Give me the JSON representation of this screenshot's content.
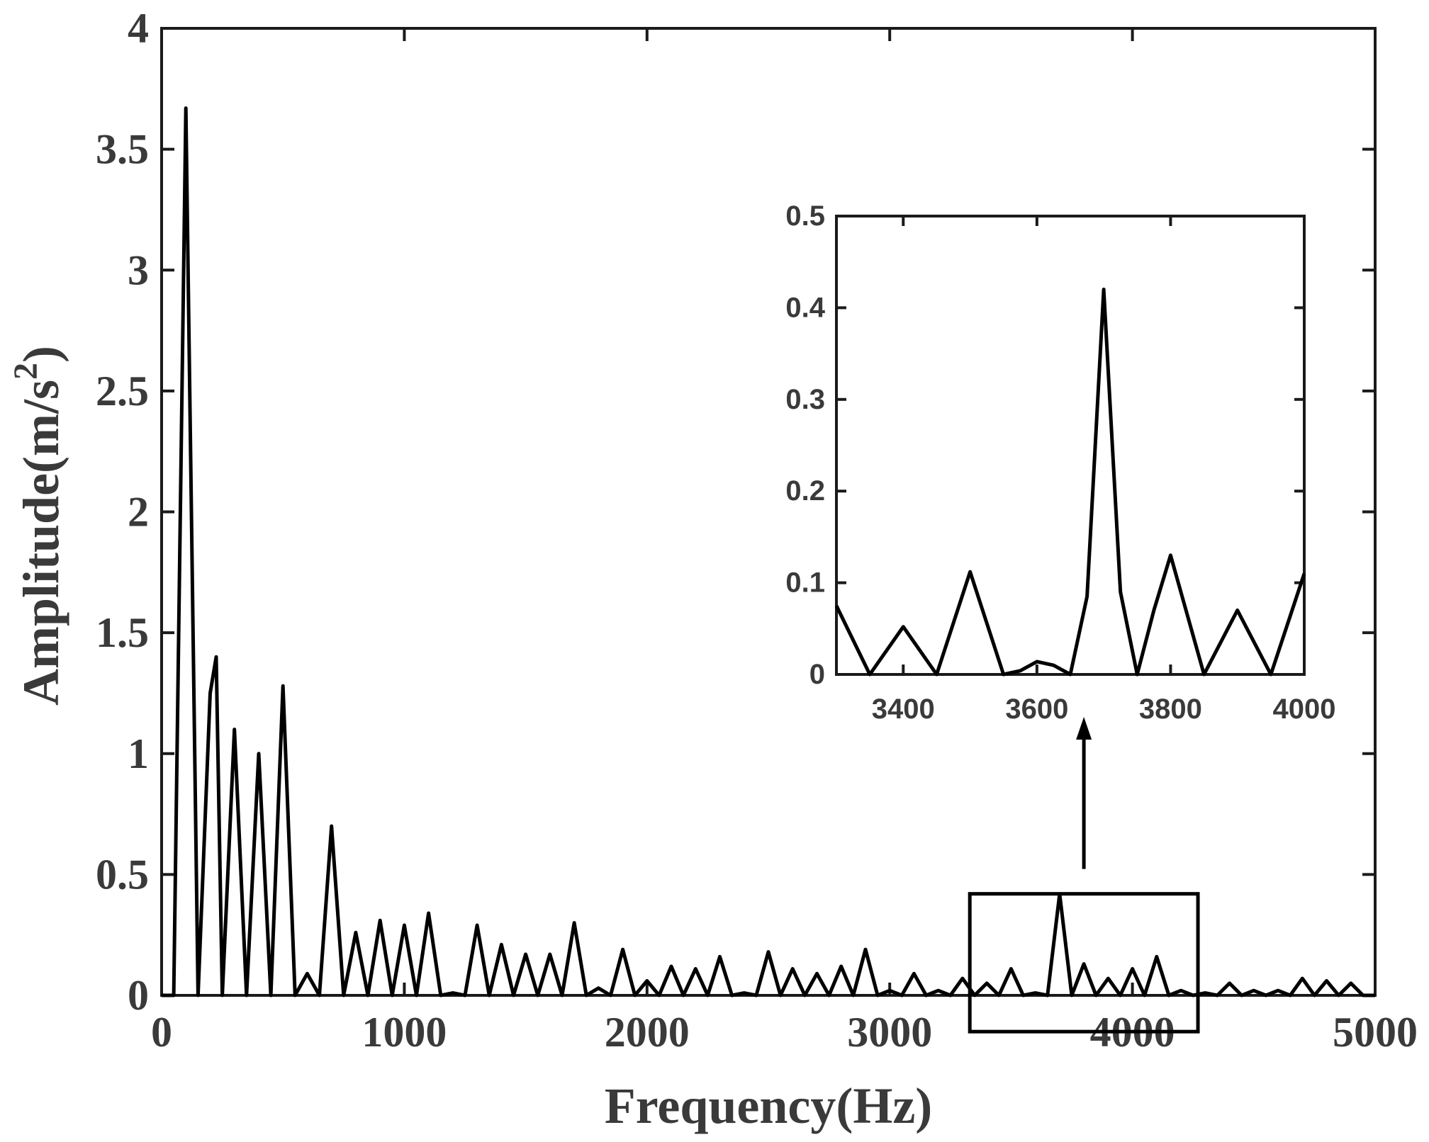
{
  "chart_data": [
    {
      "id": "main",
      "type": "line",
      "title": "",
      "xlabel": "Frequency(Hz)",
      "ylabel_base": "Amplitude(m/s",
      "ylabel_sup": "2",
      "ylabel_end": ")",
      "xlim": [
        0,
        5000
      ],
      "ylim": [
        0,
        4
      ],
      "xticks": [
        0,
        1000,
        2000,
        3000,
        4000,
        5000
      ],
      "xtick_labels": [
        "0",
        "1000",
        "2000",
        "3000",
        "4000",
        "5000"
      ],
      "yticks": [
        0,
        0.5,
        1,
        1.5,
        2,
        2.5,
        3,
        3.5,
        4
      ],
      "ytick_labels": [
        "0",
        "0.5",
        "1",
        "1.5",
        "2",
        "2.5",
        "3",
        "3.5",
        "4"
      ],
      "grid": false,
      "series": [
        {
          "color": "#000000",
          "x": [
            0,
            50,
            100,
            150,
            200,
            225,
            250,
            300,
            350,
            400,
            450,
            500,
            550,
            600,
            650,
            700,
            750,
            800,
            850,
            900,
            950,
            1000,
            1050,
            1100,
            1150,
            1200,
            1250,
            1300,
            1350,
            1400,
            1450,
            1500,
            1550,
            1600,
            1650,
            1700,
            1750,
            1800,
            1850,
            1900,
            1950,
            2000,
            2050,
            2100,
            2150,
            2200,
            2250,
            2300,
            2350,
            2400,
            2450,
            2500,
            2550,
            2600,
            2650,
            2700,
            2750,
            2800,
            2850,
            2900,
            2950,
            3000,
            3050,
            3100,
            3150,
            3200,
            3250,
            3300,
            3350,
            3400,
            3450,
            3500,
            3550,
            3600,
            3650,
            3700,
            3750,
            3800,
            3850,
            3900,
            3950,
            4000,
            4050,
            4100,
            4150,
            4200,
            4250,
            4300,
            4350,
            4400,
            4450,
            4500,
            4550,
            4600,
            4650,
            4700,
            4750,
            4800,
            4850,
            4900,
            4950,
            5000
          ],
          "y": [
            0,
            0,
            3.67,
            0,
            1.25,
            1.4,
            0,
            1.1,
            0,
            1.0,
            0,
            1.28,
            0,
            0.09,
            0,
            0.7,
            0,
            0.26,
            0,
            0.31,
            0,
            0.29,
            0,
            0.34,
            0,
            0.01,
            0,
            0.29,
            0,
            0.21,
            0,
            0.17,
            0,
            0.17,
            0,
            0.3,
            0,
            0.03,
            0,
            0.19,
            0,
            0.06,
            0,
            0.12,
            0,
            0.11,
            0,
            0.16,
            0,
            0.01,
            0,
            0.18,
            0,
            0.11,
            0,
            0.09,
            0,
            0.12,
            0,
            0.19,
            0,
            0.02,
            0,
            0.09,
            0,
            0.02,
            0,
            0.07,
            0,
            0.05,
            0,
            0.11,
            0,
            0.01,
            0,
            0.42,
            0,
            0.13,
            0,
            0.07,
            0,
            0.11,
            0,
            0.16,
            0,
            0.02,
            0,
            0.01,
            0,
            0.05,
            0,
            0.02,
            0,
            0.02,
            0,
            0.07,
            0,
            0.06,
            0,
            0.05,
            0,
            0
          ]
        }
      ],
      "zoom_region": {
        "x": [
          3330,
          4270
        ],
        "y": [
          -0.15,
          0.42
        ]
      }
    },
    {
      "id": "inset",
      "type": "line",
      "title": "",
      "xlabel": "",
      "ylabel": "",
      "xlim": [
        3300,
        4000
      ],
      "ylim": [
        0,
        0.5
      ],
      "xticks": [
        3400,
        3600,
        3800,
        4000
      ],
      "xtick_labels": [
        "3400",
        "3600",
        "3800",
        "4000"
      ],
      "yticks": [
        0,
        0.1,
        0.2,
        0.3,
        0.4,
        0.5
      ],
      "ytick_labels": [
        "0",
        "0.1",
        "0.2",
        "0.3",
        "0.4",
        "0.5"
      ],
      "grid": false,
      "series": [
        {
          "color": "#000000",
          "x": [
            3300,
            3350,
            3400,
            3450,
            3500,
            3550,
            3575,
            3600,
            3625,
            3650,
            3675,
            3700,
            3725,
            3750,
            3775,
            3800,
            3850,
            3900,
            3950,
            4000
          ],
          "y": [
            0.075,
            0,
            0.052,
            0,
            0.112,
            0,
            0.004,
            0.014,
            0.01,
            0,
            0.085,
            0.42,
            0.09,
            0,
            0.07,
            0.13,
            0,
            0.07,
            0,
            0.11
          ]
        }
      ]
    }
  ]
}
